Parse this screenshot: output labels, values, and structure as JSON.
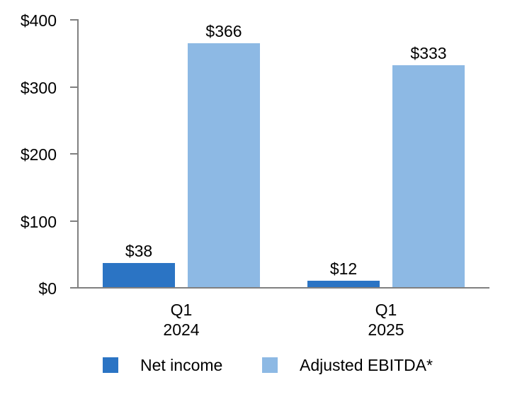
{
  "chart_data": {
    "type": "bar",
    "title": "",
    "categories": [
      [
        "Q1",
        "2024"
      ],
      [
        "Q1",
        "2025"
      ]
    ],
    "series": [
      {
        "name": "Net income",
        "color": "#2B74C4",
        "values": [
          38,
          12
        ],
        "labels": [
          "$38",
          "$12"
        ]
      },
      {
        "name": "Adjusted EBITDA*",
        "color": "#8DB9E4",
        "values": [
          366,
          333
        ],
        "labels": [
          "$366",
          "$333"
        ]
      }
    ],
    "y_axis": {
      "min": 0,
      "max": 400,
      "tick_step": 100,
      "tick_labels": [
        "$0",
        "$100",
        "$200",
        "$300",
        "$400"
      ],
      "axis_color": "#808080"
    },
    "grid": false,
    "legend_position": "bottom",
    "text_color": "#000000",
    "background_color": "#ffffff"
  }
}
